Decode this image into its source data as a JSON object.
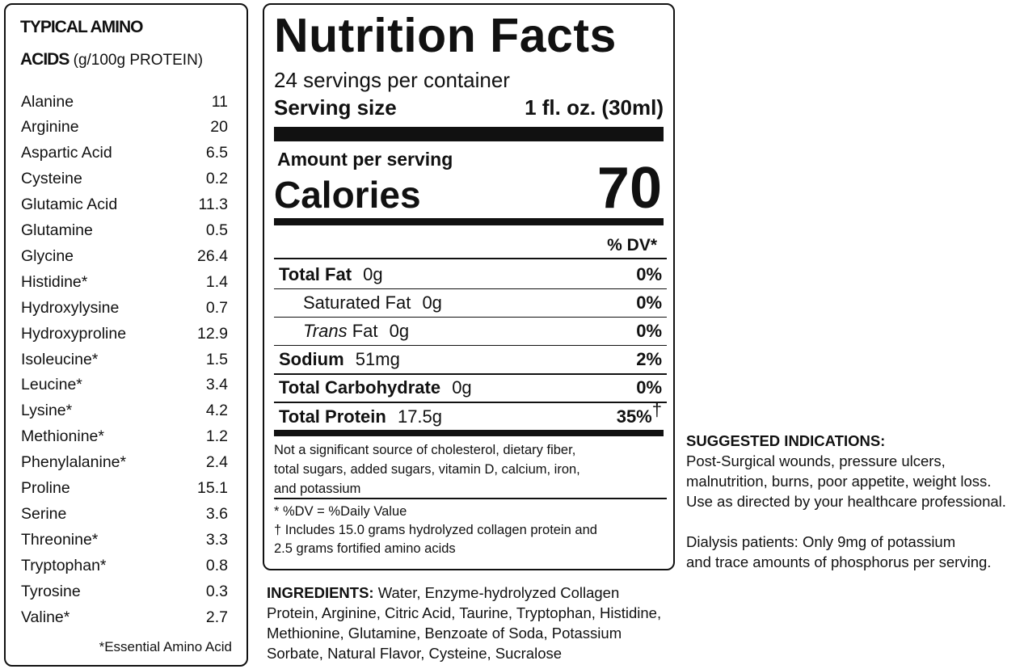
{
  "amino_acids": {
    "title_line1": "TYPICAL AMINO",
    "title_bold": "ACIDS",
    "title_unit": "(g/100g PROTEIN)",
    "rows": [
      [
        "Alanine",
        "11"
      ],
      [
        "Arginine",
        "20"
      ],
      [
        "Aspartic Acid",
        "6.5"
      ],
      [
        "Cysteine",
        "0.2"
      ],
      [
        "Glutamic Acid",
        "11.3"
      ],
      [
        "Glutamine",
        "0.5"
      ],
      [
        "Glycine",
        "26.4"
      ],
      [
        "Histidine*",
        "1.4"
      ],
      [
        "Hydroxylysine",
        "0.7"
      ],
      [
        "Hydroxyproline",
        "12.9"
      ],
      [
        "Isoleucine*",
        "1.5"
      ],
      [
        "Leucine*",
        "3.4"
      ],
      [
        "Lysine*",
        "4.2"
      ],
      [
        "Methionine*",
        "1.2"
      ],
      [
        "Phenylalanine*",
        "2.4"
      ],
      [
        "Proline",
        "15.1"
      ],
      [
        "Serine",
        "3.6"
      ],
      [
        "Threonine*",
        "3.3"
      ],
      [
        "Tryptophan*",
        "0.8"
      ],
      [
        "Tyrosine",
        "0.3"
      ],
      [
        "Valine*",
        "2.7"
      ]
    ],
    "footnote": "*Essential Amino Acid"
  },
  "nutrition_facts": {
    "title": "Nutrition Facts",
    "servings": "24 servings per container",
    "serving_size_label": "Serving size",
    "serving_size_value": "1 fl. oz. (30ml)",
    "amount_per_serving": "Amount per serving",
    "calories_label": "Calories",
    "calories_value": "70",
    "dv_header": "% DV*",
    "nutrients": [
      {
        "name": "Total Fat",
        "amount": "0g",
        "dv": "0%"
      },
      {
        "name": "Saturated Fat",
        "amount": "0g",
        "dv": "0%"
      },
      {
        "name_italic": "Trans",
        "name": "Fat",
        "amount": "0g",
        "dv": "0%"
      },
      {
        "name": "Sodium",
        "amount": "51mg",
        "dv": "2%"
      },
      {
        "name": "Total Carbohydrate",
        "amount": "0g",
        "dv": "0%"
      },
      {
        "name": "Total Protein",
        "amount": "17.5g",
        "dv": "35%",
        "mark": "†"
      }
    ],
    "note_lines": [
      "Not a significant source of cholesterol, dietary fiber,",
      "total sugars, added sugars, vitamin D, calcium, iron,",
      "and potassium"
    ],
    "footnote_lines": [
      "* %DV = %Daily Value",
      "† Includes 15.0 grams hydrolyzed collagen protein and",
      "2.5 grams fortified amino acids"
    ]
  },
  "ingredients": {
    "label": "INGREDIENTS:",
    "lines": [
      "Water, Enzyme-hydrolyzed Collagen",
      "Protein, Arginine, Citric Acid, Taurine, Tryptophan, Histidine,",
      "Methionine, Glutamine, Benzoate of Soda, Potassium",
      "Sorbate, Natural Flavor, Cysteine, Sucralose"
    ]
  },
  "indications": {
    "title": "SUGGESTED INDICATIONS:",
    "lines": [
      "Post-Surgical wounds, pressure ulcers,",
      "malnutrition, burns, poor appetite, weight loss.",
      "Use as directed by your healthcare professional."
    ],
    "dialysis_lines": [
      "Dialysis patients: Only 9mg of potassium",
      "and trace amounts of phosphorus per serving."
    ]
  }
}
